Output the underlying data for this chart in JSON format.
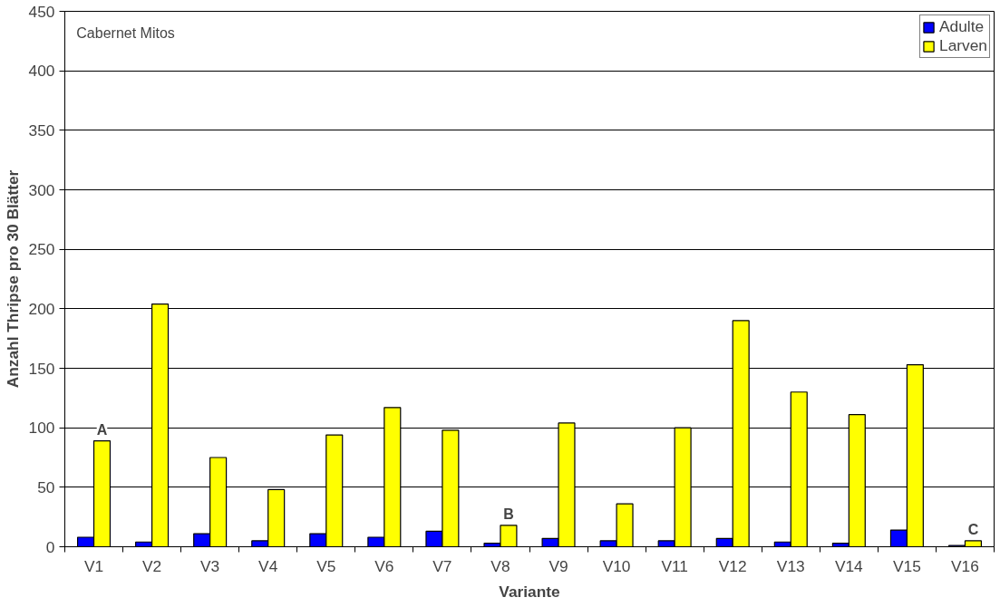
{
  "chart_data": {
    "type": "bar",
    "title": "Cabernet Mitos",
    "xlabel": "Variante",
    "ylabel": "Anzahl Thripse pro 30 Blätter",
    "categories": [
      "V1",
      "V2",
      "V3",
      "V4",
      "V5",
      "V6",
      "V7",
      "V8",
      "V9",
      "V10",
      "V11",
      "V12",
      "V13",
      "V14",
      "V15",
      "V16"
    ],
    "series": [
      {
        "name": "Adulte",
        "color": "#0000ff",
        "values": [
          8,
          4,
          11,
          5,
          11,
          8,
          13,
          3,
          7,
          5,
          5,
          7,
          4,
          3,
          14,
          1
        ]
      },
      {
        "name": "Larven",
        "color": "#ffff00",
        "values": [
          89,
          204,
          75,
          48,
          94,
          117,
          98,
          18,
          104,
          36,
          100,
          190,
          130,
          111,
          153,
          5
        ]
      }
    ],
    "annotations": [
      {
        "text": "A",
        "x": "V1",
        "y": 89
      },
      {
        "text": "B",
        "x": "V8",
        "y": 18
      },
      {
        "text": "C",
        "x": "V16",
        "y": 5
      }
    ],
    "ylim": [
      0,
      450
    ],
    "yticks": [
      0,
      50,
      100,
      150,
      200,
      250,
      300,
      350,
      400,
      450
    ],
    "grid": "y",
    "legend": "top right"
  }
}
